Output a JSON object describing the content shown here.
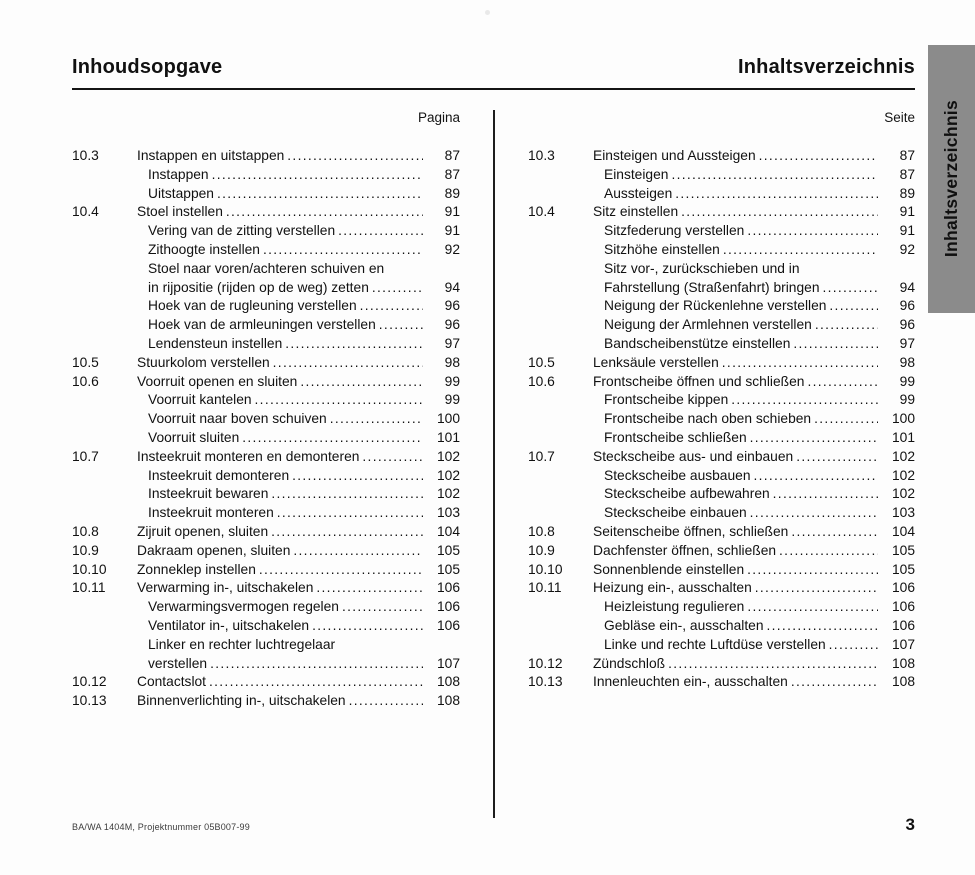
{
  "header": {
    "title_left": "Inhoudsopgave",
    "title_right": "Inhaltsverzeichnis",
    "col_label_left": "Pagina",
    "col_label_right": "Seite"
  },
  "side_tab": {
    "label": "Inhaltsverzeichnis",
    "color": "#8b8b8b"
  },
  "toc_left": {
    "rows": [
      {
        "num": "10.3",
        "text": "Instappen en uitstappen",
        "page": "87",
        "sub": false
      },
      {
        "num": "",
        "text": "Instappen",
        "page": "87",
        "sub": true
      },
      {
        "num": "",
        "text": "Uitstappen",
        "page": "89",
        "sub": true
      },
      {
        "num": "10.4",
        "text": "Stoel instellen",
        "page": "91",
        "sub": false
      },
      {
        "num": "",
        "text": "Vering van de zitting verstellen",
        "page": "91",
        "sub": true
      },
      {
        "num": "",
        "text": "Zithoogte instellen",
        "page": "92",
        "sub": true
      },
      {
        "num": "",
        "text": "Stoel naar voren/achteren schuiven en",
        "page": "",
        "sub": true
      },
      {
        "num": "",
        "text": "in rijpositie (rijden op de weg) zetten",
        "page": "94",
        "sub": true
      },
      {
        "num": "",
        "text": "Hoek van de rugleuning verstellen",
        "page": "96",
        "sub": true
      },
      {
        "num": "",
        "text": "Hoek van de armleuningen verstellen",
        "page": "96",
        "sub": true
      },
      {
        "num": "",
        "text": "Lendensteun instellen",
        "page": "97",
        "sub": true
      },
      {
        "num": "10.5",
        "text": "Stuurkolom verstellen",
        "page": "98",
        "sub": false
      },
      {
        "num": "10.6",
        "text": "Voorruit openen en sluiten",
        "page": "99",
        "sub": false
      },
      {
        "num": "",
        "text": "Voorruit kantelen",
        "page": "99",
        "sub": true
      },
      {
        "num": "",
        "text": "Voorruit naar boven schuiven",
        "page": "100",
        "sub": true
      },
      {
        "num": "",
        "text": "Voorruit sluiten",
        "page": "101",
        "sub": true
      },
      {
        "num": "10.7",
        "text": "Insteekruit monteren en demonteren",
        "page": "102",
        "sub": false
      },
      {
        "num": "",
        "text": "Insteekruit demonteren",
        "page": "102",
        "sub": true
      },
      {
        "num": "",
        "text": "Insteekruit bewaren",
        "page": "102",
        "sub": true
      },
      {
        "num": "",
        "text": "Insteekruit monteren",
        "page": "103",
        "sub": true
      },
      {
        "num": "10.8",
        "text": "Zijruit openen, sluiten",
        "page": "104",
        "sub": false
      },
      {
        "num": "10.9",
        "text": "Dakraam openen, sluiten",
        "page": "105",
        "sub": false
      },
      {
        "num": "10.10",
        "text": "Zonneklep instellen",
        "page": "105",
        "sub": false
      },
      {
        "num": "10.11",
        "text": "Verwarming in-, uitschakelen",
        "page": "106",
        "sub": false
      },
      {
        "num": "",
        "text": "Verwarmingsvermogen regelen",
        "page": "106",
        "sub": true
      },
      {
        "num": "",
        "text": "Ventilator in-, uitschakelen",
        "page": "106",
        "sub": true
      },
      {
        "num": "",
        "text": "Linker en rechter luchtregelaar",
        "page": "",
        "sub": true
      },
      {
        "num": "",
        "text": "verstellen",
        "page": "107",
        "sub": true
      },
      {
        "num": "10.12",
        "text": "Contactslot",
        "page": "108",
        "sub": false
      },
      {
        "num": "10.13",
        "text": "Binnenverlichting in-, uitschakelen",
        "page": "108",
        "sub": false
      }
    ]
  },
  "toc_right": {
    "rows": [
      {
        "num": "10.3",
        "text": "Einsteigen und Aussteigen",
        "page": "87",
        "sub": false
      },
      {
        "num": "",
        "text": "Einsteigen",
        "page": "87",
        "sub": true
      },
      {
        "num": "",
        "text": "Aussteigen",
        "page": "89",
        "sub": true
      },
      {
        "num": "10.4",
        "text": "Sitz einstellen",
        "page": "91",
        "sub": false
      },
      {
        "num": "",
        "text": "Sitzfederung verstellen",
        "page": "91",
        "sub": true
      },
      {
        "num": "",
        "text": "Sitzhöhe einstellen",
        "page": "92",
        "sub": true
      },
      {
        "num": "",
        "text": "Sitz vor-, zurückschieben und in",
        "page": "",
        "sub": true
      },
      {
        "num": "",
        "text": "Fahrstellung (Straßenfahrt) bringen",
        "page": "94",
        "sub": true
      },
      {
        "num": "",
        "text": "Neigung der Rückenlehne verstellen",
        "page": "96",
        "sub": true
      },
      {
        "num": "",
        "text": "Neigung der Armlehnen verstellen",
        "page": "96",
        "sub": true
      },
      {
        "num": "",
        "text": "Bandscheibenstütze einstellen",
        "page": "97",
        "sub": true
      },
      {
        "num": "10.5",
        "text": "Lenksäule verstellen",
        "page": "98",
        "sub": false
      },
      {
        "num": "10.6",
        "text": "Frontscheibe öffnen und schließen",
        "page": "99",
        "sub": false
      },
      {
        "num": "",
        "text": "Frontscheibe kippen",
        "page": "99",
        "sub": true
      },
      {
        "num": "",
        "text": "Frontscheibe nach oben schieben",
        "page": "100",
        "sub": true
      },
      {
        "num": "",
        "text": "Frontscheibe schließen",
        "page": "101",
        "sub": true
      },
      {
        "num": "10.7",
        "text": "Steckscheibe aus- und einbauen",
        "page": "102",
        "sub": false
      },
      {
        "num": "",
        "text": "Steckscheibe ausbauen",
        "page": "102",
        "sub": true
      },
      {
        "num": "",
        "text": "Steckscheibe aufbewahren",
        "page": "102",
        "sub": true
      },
      {
        "num": "",
        "text": "Steckscheibe einbauen",
        "page": "103",
        "sub": true
      },
      {
        "num": "10.8",
        "text": "Seitenscheibe öffnen, schließen",
        "page": "104",
        "sub": false
      },
      {
        "num": "10.9",
        "text": "Dachfenster öffnen, schließen",
        "page": "105",
        "sub": false
      },
      {
        "num": "10.10",
        "text": "Sonnenblende einstellen",
        "page": "105",
        "sub": false
      },
      {
        "num": "10.11",
        "text": "Heizung ein-, ausschalten",
        "page": "106",
        "sub": false
      },
      {
        "num": "",
        "text": "Heizleistung regulieren",
        "page": "106",
        "sub": true
      },
      {
        "num": "",
        "text": "Gebläse ein-, ausschalten",
        "page": "106",
        "sub": true
      },
      {
        "num": "",
        "text": "Linke und rechte Luftdüse verstellen",
        "page": "107",
        "sub": true
      },
      {
        "num": "10.12",
        "text": "Zündschloß",
        "page": "108",
        "sub": false
      },
      {
        "num": "10.13",
        "text": "Innenleuchten ein-, ausschalten",
        "page": "108",
        "sub": false
      }
    ]
  },
  "footer": {
    "note": "BA/WA 1404M, Projektnummer 05B007-99",
    "page_number": "3"
  }
}
